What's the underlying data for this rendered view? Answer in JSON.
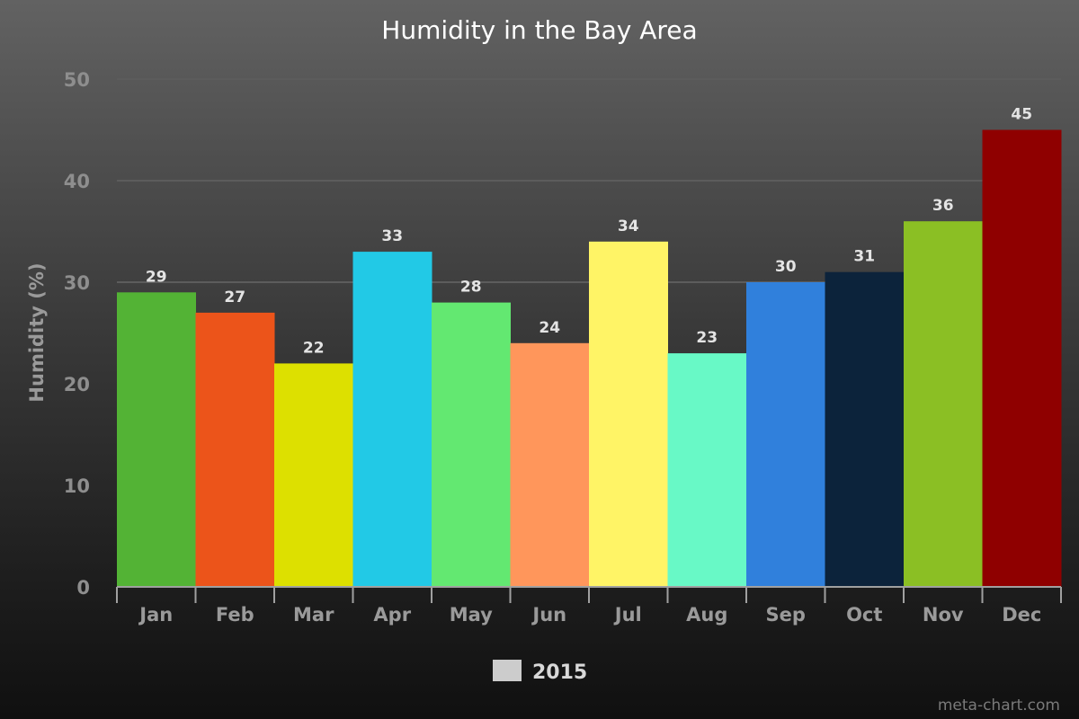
{
  "chart_data": {
    "type": "bar",
    "title": "Humidity in the Bay Area",
    "xlabel": "",
    "ylabel": "Humidity (%)",
    "ylim": [
      0,
      50
    ],
    "yticks": [
      "0",
      "10",
      "20",
      "30",
      "40",
      "50"
    ],
    "grid": true,
    "categories": [
      "Jan",
      "Feb",
      "Mar",
      "Apr",
      "May",
      "Jun",
      "Jul",
      "Aug",
      "Sep",
      "Oct",
      "Nov",
      "Dec"
    ],
    "series": [
      {
        "name": "2015",
        "values": [
          29,
          27,
          22,
          33,
          28,
          24,
          34,
          23,
          30,
          31,
          36,
          45
        ]
      }
    ],
    "bar_colors": [
      "#53b335",
      "#ec541a",
      "#dde000",
      "#22c9e6",
      "#63e871",
      "#ff965b",
      "#fff466",
      "#68f9c6",
      "#3080dc",
      "#0c233b",
      "#8bbf24",
      "#8f0000"
    ],
    "legend": {
      "placement": "bottom-center",
      "swatch_color": "#cccccc",
      "label": "2015"
    }
  },
  "credit": "meta-chart.com"
}
